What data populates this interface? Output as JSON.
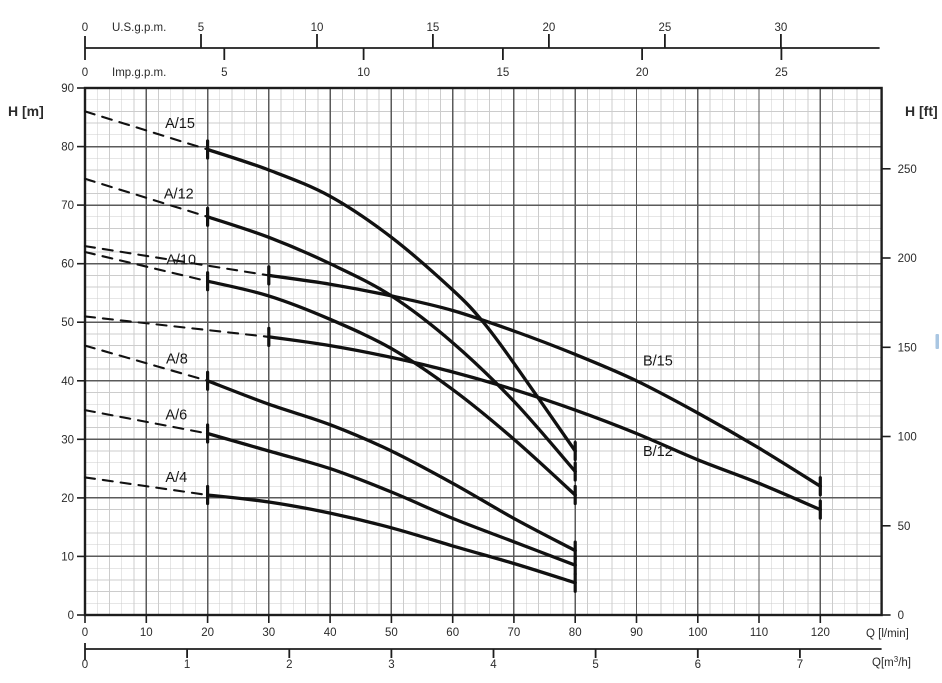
{
  "chart_data": {
    "type": "line",
    "description": "Pump head vs flow performance curves",
    "axes": {
      "x_lmin": {
        "label": "Q [l/min]",
        "ticks": [
          0,
          10,
          20,
          30,
          40,
          50,
          60,
          70,
          80,
          90,
          100,
          110,
          120
        ],
        "range": [
          0,
          130
        ]
      },
      "x_m3h": {
        "label": "Q[m³/h]",
        "label_parts": [
          "Q[m",
          "3",
          "/h]"
        ],
        "ticks": [
          0,
          1,
          2,
          3,
          4,
          5,
          6,
          7
        ]
      },
      "x_usgpm": {
        "label": "U.S.g.p.m.",
        "ticks": [
          0,
          5,
          10,
          15,
          20,
          25,
          30
        ]
      },
      "x_impgpm": {
        "label": "Imp.g.p.m.",
        "ticks": [
          0,
          5,
          10,
          15,
          20,
          25
        ]
      },
      "y_m": {
        "label": "H [m]",
        "ticks": [
          0,
          10,
          20,
          30,
          40,
          50,
          60,
          70,
          80,
          90
        ],
        "range": [
          0,
          90
        ]
      },
      "y_ft": {
        "label": "H [ft]",
        "ticks": [
          0,
          50,
          100,
          150,
          200,
          250
        ]
      }
    },
    "conversions": {
      "lmin_per_usgpm": 3.78541,
      "lmin_per_impgpm": 4.54609,
      "lmin_per_m3h": 16.66667,
      "m_per_ft": 0.3048
    },
    "grid": {
      "major_step_lmin": 10,
      "minor_step_lmin": 2,
      "major_step_m": 10,
      "minor_step_m": 2
    },
    "series": [
      {
        "name": "A/15",
        "label_at": [
          15.5,
          84.0
        ],
        "dashed": [
          [
            0,
            86
          ],
          [
            20,
            79.5
          ]
        ],
        "solid": [
          [
            20,
            79.5
          ],
          [
            30,
            76
          ],
          [
            40,
            71.5
          ],
          [
            50,
            64.5
          ],
          [
            60,
            55.5
          ],
          [
            65,
            50
          ],
          [
            70,
            43
          ],
          [
            80,
            28
          ]
        ]
      },
      {
        "name": "A/12",
        "label_at": [
          15.3,
          72.0
        ],
        "dashed": [
          [
            0,
            74.5
          ],
          [
            20,
            68
          ]
        ],
        "solid": [
          [
            20,
            68
          ],
          [
            30,
            64.5
          ],
          [
            40,
            60
          ],
          [
            50,
            54.5
          ],
          [
            60,
            46.5
          ],
          [
            70,
            36.5
          ],
          [
            80,
            24.5
          ]
        ]
      },
      {
        "name": "A/10",
        "label_at": [
          15.7,
          60.7
        ],
        "dashed": [
          [
            0,
            62
          ],
          [
            20,
            57
          ]
        ],
        "solid": [
          [
            20,
            57
          ],
          [
            30,
            54.5
          ],
          [
            40,
            50.5
          ],
          [
            50,
            45.5
          ],
          [
            60,
            38.5
          ],
          [
            70,
            30
          ],
          [
            80,
            20.5
          ]
        ]
      },
      {
        "name": "A/8",
        "label_at": [
          15.0,
          43.8
        ],
        "dashed": [
          [
            0,
            46
          ],
          [
            20,
            40
          ]
        ],
        "solid": [
          [
            20,
            40
          ],
          [
            30,
            36
          ],
          [
            40,
            32.5
          ],
          [
            50,
            28
          ],
          [
            60,
            22.5
          ],
          [
            70,
            16.5
          ],
          [
            80,
            11
          ]
        ]
      },
      {
        "name": "A/6",
        "label_at": [
          14.9,
          34.2
        ],
        "dashed": [
          [
            0,
            35
          ],
          [
            20,
            31
          ]
        ],
        "solid": [
          [
            20,
            31
          ],
          [
            30,
            28
          ],
          [
            40,
            25
          ],
          [
            50,
            21
          ],
          [
            60,
            16.5
          ],
          [
            70,
            12.5
          ],
          [
            80,
            8.5
          ]
        ]
      },
      {
        "name": "A/4",
        "label_at": [
          14.9,
          23.6
        ],
        "dashed": [
          [
            0,
            23.5
          ],
          [
            20,
            20.5
          ]
        ],
        "solid": [
          [
            20,
            20.5
          ],
          [
            30,
            19.3
          ],
          [
            40,
            17.4
          ],
          [
            50,
            14.9
          ],
          [
            60,
            11.8
          ],
          [
            70,
            8.8
          ],
          [
            80,
            5.5
          ]
        ]
      },
      {
        "name": "B/15",
        "label_at": [
          93.5,
          43.5
        ],
        "dashed": [
          [
            0,
            63
          ],
          [
            30,
            58
          ]
        ],
        "solid": [
          [
            30,
            58
          ],
          [
            40,
            56.5
          ],
          [
            50,
            54.5
          ],
          [
            60,
            52
          ],
          [
            70,
            48.5
          ],
          [
            80,
            44.5
          ],
          [
            90,
            40
          ],
          [
            100,
            34.5
          ],
          [
            110,
            28.5
          ],
          [
            120,
            22
          ]
        ]
      },
      {
        "name": "B/12",
        "label_at": [
          93.5,
          28.0
        ],
        "dashed": [
          [
            0,
            51
          ],
          [
            30,
            47.5
          ]
        ],
        "solid": [
          [
            30,
            47.5
          ],
          [
            40,
            46
          ],
          [
            50,
            44
          ],
          [
            60,
            41.5
          ],
          [
            70,
            38.5
          ],
          [
            80,
            35
          ],
          [
            90,
            31
          ],
          [
            100,
            26.5
          ],
          [
            110,
            22.5
          ],
          [
            120,
            18
          ]
        ]
      }
    ],
    "colors": {
      "curve": "#111111",
      "major_grid": "#5a5a5a",
      "minor_grid": "#cccccc",
      "border": "#1d1d1d",
      "text": "#2b2b2b",
      "artifact_blue": "#a9c6e2"
    }
  }
}
